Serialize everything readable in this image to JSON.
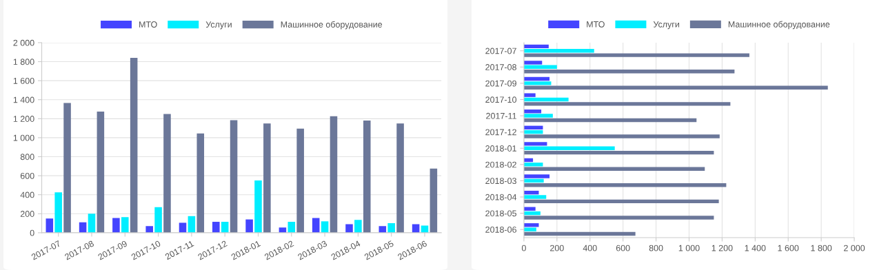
{
  "chart_data": [
    {
      "type": "bar",
      "legend": "top",
      "grid": "y",
      "categories": [
        "2017-07",
        "2017-08",
        "2017-09",
        "2017-10",
        "2017-11",
        "2017-12",
        "2018-01",
        "2018-02",
        "2018-03",
        "2018-04",
        "2018-05",
        "2018-06"
      ],
      "series": [
        {
          "name": "МТО",
          "color": "#4444ff",
          "values": [
            150,
            110,
            155,
            70,
            105,
            115,
            140,
            55,
            155,
            90,
            70,
            90
          ]
        },
        {
          "name": "Услуги",
          "color": "#00eeff",
          "values": [
            425,
            200,
            165,
            270,
            175,
            115,
            550,
            115,
            120,
            135,
            100,
            75
          ]
        },
        {
          "name": "Машинное оборудование",
          "color": "#6b7799",
          "values": [
            1365,
            1275,
            1840,
            1250,
            1045,
            1185,
            1150,
            1095,
            1225,
            1180,
            1150,
            675
          ]
        }
      ],
      "ylim": [
        0,
        2000
      ],
      "yticks": [
        0,
        200,
        400,
        600,
        800,
        {
          "value": 1000,
          "label": "1 000"
        },
        {
          "value": 1200,
          "label": "1 200"
        },
        {
          "value": 1400,
          "label": "1 400"
        },
        {
          "value": 1600,
          "label": "1 600"
        },
        {
          "value": 1800,
          "label": "1 800"
        },
        {
          "value": 2000,
          "label": "2 000"
        }
      ]
    },
    {
      "type": "bar",
      "orientation": "horizontal",
      "legend": "top",
      "grid": "x",
      "categories": [
        "2017-07",
        "2017-08",
        "2017-09",
        "2017-10",
        "2017-11",
        "2017-12",
        "2018-01",
        "2018-02",
        "2018-03",
        "2018-04",
        "2018-05",
        "2018-06"
      ],
      "series": [
        {
          "name": "МТО",
          "color": "#4444ff",
          "values": [
            150,
            110,
            155,
            70,
            105,
            115,
            140,
            55,
            155,
            90,
            70,
            90
          ]
        },
        {
          "name": "Услуги",
          "color": "#00eeff",
          "values": [
            425,
            200,
            165,
            270,
            175,
            115,
            550,
            115,
            120,
            135,
            100,
            75
          ]
        },
        {
          "name": "Машинное оборудование",
          "color": "#6b7799",
          "values": [
            1365,
            1275,
            1840,
            1250,
            1045,
            1185,
            1150,
            1095,
            1225,
            1180,
            1150,
            675
          ]
        }
      ],
      "xlim": [
        0,
        2000
      ],
      "xticks": [
        0,
        200,
        400,
        600,
        800,
        {
          "value": 1000,
          "label": "1 000"
        },
        {
          "value": 1200,
          "label": "1 200"
        },
        {
          "value": 1400,
          "label": "1 400"
        },
        {
          "value": 1600,
          "label": "1 600"
        },
        {
          "value": 1800,
          "label": "1 800"
        },
        {
          "value": 2000,
          "label": "2 000"
        }
      ]
    }
  ]
}
